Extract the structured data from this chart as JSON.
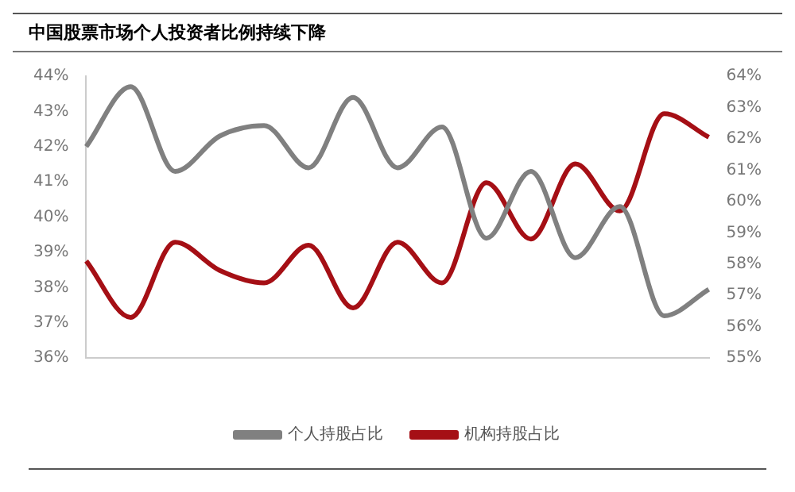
{
  "chart_data": {
    "type": "line",
    "title": "中国股票市场个人投资者比例持续下降",
    "categories": [
      null,
      null,
      null,
      null,
      null,
      null,
      null,
      null,
      null,
      null,
      null,
      null,
      null,
      null,
      null
    ],
    "series": [
      {
        "name": "个人持股占比",
        "color": "#808080",
        "values": [
          42.0,
          43.7,
          41.3,
          42.3,
          42.6,
          41.4,
          43.4,
          41.4,
          42.56,
          39.4,
          41.3,
          38.85,
          40.3,
          37.2,
          37.95
        ]
      },
      {
        "name": "机构持股占比",
        "color": "#a50f15",
        "axis": "y2",
        "values": [
          58.1,
          56.3,
          58.7,
          57.8,
          57.4,
          58.6,
          56.6,
          58.7,
          57.4,
          60.6,
          58.8,
          61.2,
          59.7,
          62.8,
          62.05
        ]
      }
    ],
    "ylim": [
      36,
      44
    ],
    "yticks": [
      {
        "value": 36,
        "label": "36%"
      },
      {
        "value": 37,
        "label": "37%"
      },
      {
        "value": 38,
        "label": "38%"
      },
      {
        "value": 39,
        "label": "39%"
      },
      {
        "value": 40,
        "label": "40%"
      },
      {
        "value": 41,
        "label": "41%"
      },
      {
        "value": 42,
        "label": "42%"
      },
      {
        "value": 43,
        "label": "43%"
      },
      {
        "value": 44,
        "label": "44%"
      }
    ],
    "y2lim": [
      55,
      64
    ],
    "y2ticks": [
      {
        "value": 55,
        "label": "55%"
      },
      {
        "value": 56,
        "label": "56%"
      },
      {
        "value": 57,
        "label": "57%"
      },
      {
        "value": 58,
        "label": "58%"
      },
      {
        "value": 59,
        "label": "59%"
      },
      {
        "value": 60,
        "label": "60%"
      },
      {
        "value": 61,
        "label": "61%"
      },
      {
        "value": 62,
        "label": "62%"
      },
      {
        "value": 63,
        "label": "63%"
      },
      {
        "value": 64,
        "label": "64%"
      }
    ],
    "grid": false,
    "legend": "bottom",
    "marker": "none",
    "line_style": "solid"
  }
}
